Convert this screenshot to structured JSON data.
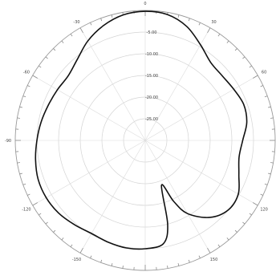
{
  "chart_data": {
    "type": "polar-line",
    "angle_unit": "degrees",
    "angle_ticks": [
      0,
      30,
      60,
      90,
      120,
      150,
      180,
      -150,
      -120,
      -90,
      -60,
      -30
    ],
    "angle_labels": [
      "0",
      "30",
      "60",
      "90",
      "120",
      "150",
      "-180",
      "-150",
      "-120",
      "-90",
      "-60",
      "-30"
    ],
    "radial_range": [
      -30,
      0
    ],
    "radial_ticks": [
      -5,
      -10,
      -15,
      -20,
      -25
    ],
    "radial_labels": [
      "-5.00",
      "-10.00",
      "-15.00",
      "-20.00",
      "-25.00"
    ],
    "grid": true,
    "series": [
      {
        "theta": [
          0,
          10,
          20,
          30,
          40,
          50,
          60,
          70,
          80,
          90,
          100,
          110,
          120,
          130,
          140,
          150,
          155,
          160,
          165,
          170,
          180,
          190,
          200,
          210,
          220,
          230,
          240,
          250,
          260,
          270,
          280,
          290,
          300,
          310,
          320,
          330,
          340,
          350
        ],
        "r": [
          -0.2,
          -0.5,
          -2.0,
          -4.5,
          -6.5,
          -6.8,
          -6.4,
          -5.8,
          -6.2,
          -7.5,
          -8.0,
          -7.0,
          -5.2,
          -5.0,
          -6.8,
          -10.5,
          -14.5,
          -19.0,
          -10.0,
          -5.8,
          -5.0,
          -4.8,
          -5.0,
          -5.2,
          -4.6,
          -3.9,
          -3.6,
          -3.7,
          -4.3,
          -5.0,
          -5.6,
          -6.2,
          -6.6,
          -6.8,
          -5.6,
          -3.5,
          -1.8,
          -0.6
        ]
      }
    ]
  }
}
